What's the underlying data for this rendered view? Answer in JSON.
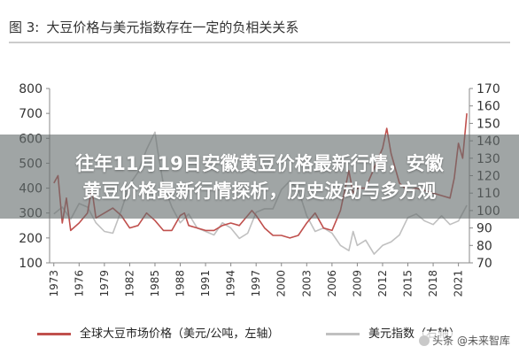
{
  "figure": {
    "label": "图 3:",
    "title": "大豆价格与美元指数存在一定的负相关关系"
  },
  "overlay": {
    "line1": "往年11月19日安徽黄豆价格最新行情，安徽",
    "line2": "黄豆价格最新行情探析，历史波动与多方观"
  },
  "legend": {
    "series1": "全球大豆市场价格（美元/公吨，左轴）",
    "series2": "美元指数（右轴）"
  },
  "watermark": {
    "text": "头条 @未来智库"
  },
  "colors": {
    "series1": "#c0504d",
    "series2": "#c0c0c0",
    "axis": "#888888"
  },
  "chart_data": {
    "type": "line",
    "x_ticks": [
      "1973",
      "1976",
      "1979",
      "1982",
      "1985",
      "1988",
      "1991",
      "1994",
      "1997",
      "2000",
      "2003",
      "2006",
      "2009",
      "2012",
      "2015",
      "2018",
      "2021"
    ],
    "y_left": {
      "ticks": [
        "100",
        "200",
        "300",
        "400",
        "500",
        "600",
        "700",
        "800"
      ],
      "range": [
        100,
        800
      ]
    },
    "y_right": {
      "ticks": [
        "70",
        "80",
        "90",
        "100",
        "110",
        "120",
        "130",
        "140",
        "150",
        "160",
        "170"
      ],
      "range": [
        70,
        170
      ]
    },
    "series": [
      {
        "name": "全球大豆市场价格（美元/公吨，左轴）",
        "axis": "left",
        "x": [
          1973,
          1973.5,
          1974,
          1974.5,
          1975,
          1976,
          1977,
          1977.5,
          1978,
          1979,
          1980,
          1981,
          1982,
          1983,
          1984,
          1985,
          1986,
          1987,
          1988,
          1988.5,
          1989,
          1990,
          1991,
          1992,
          1993,
          1994,
          1995,
          1996,
          1996.5,
          1997,
          1998,
          1999,
          2000,
          2001,
          2002,
          2003,
          2004,
          2004.5,
          2005,
          2006,
          2007,
          2008,
          2008.5,
          2009,
          2010,
          2011,
          2012,
          2012.5,
          2013,
          2014,
          2015,
          2016,
          2017,
          2018,
          2019,
          2020,
          2020.5,
          2021,
          2021.5,
          2022
        ],
        "y": [
          420,
          450,
          260,
          360,
          230,
          260,
          300,
          400,
          280,
          300,
          320,
          290,
          240,
          250,
          300,
          270,
          230,
          230,
          290,
          300,
          250,
          240,
          230,
          230,
          250,
          260,
          250,
          290,
          310,
          290,
          240,
          210,
          210,
          200,
          210,
          260,
          300,
          270,
          240,
          230,
          310,
          470,
          380,
          400,
          400,
          480,
          560,
          640,
          540,
          420,
          390,
          400,
          390,
          380,
          370,
          360,
          440,
          580,
          520,
          700
        ]
      },
      {
        "name": "美元指数（右轴）",
        "axis": "right",
        "x": [
          1973,
          1974,
          1975,
          1976,
          1977,
          1978,
          1979,
          1980,
          1981,
          1982,
          1983,
          1984,
          1985,
          1985.3,
          1986,
          1987,
          1988,
          1989,
          1990,
          1991,
          1992,
          1993,
          1994,
          1995,
          1996,
          1997,
          1998,
          1999,
          2000,
          2001,
          2002,
          2003,
          2004,
          2005,
          2006,
          2007,
          2008,
          2008.5,
          2009,
          2010,
          2011,
          2012,
          2013,
          2014,
          2015,
          2016,
          2017,
          2018,
          2019,
          2020,
          2021,
          2022
        ],
        "y": [
          98,
          102,
          95,
          104,
          102,
          93,
          88,
          87,
          100,
          115,
          122,
          135,
          145,
          135,
          115,
          102,
          93,
          98,
          90,
          88,
          86,
          93,
          90,
          84,
          87,
          99,
          101,
          101,
          112,
          117,
          112,
          97,
          88,
          90,
          87,
          80,
          77,
          88,
          80,
          83,
          75,
          80,
          82,
          86,
          96,
          98,
          94,
          92,
          97,
          92,
          94,
          103
        ]
      }
    ]
  }
}
